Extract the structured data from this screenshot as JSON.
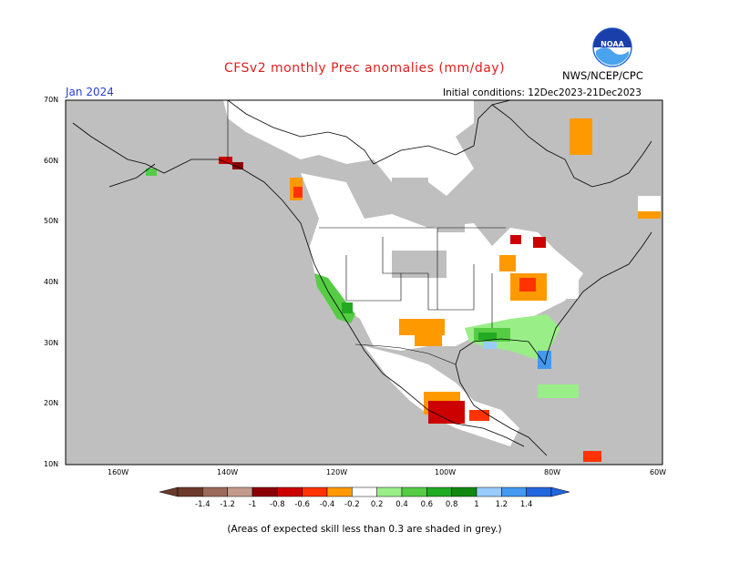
{
  "title": "CFSv2 monthly Prec anomalies (mm/day)",
  "month": "Jan 2024",
  "initial_conditions": "Initial conditions: 12Dec2023-21Dec2023",
  "agency": "NWS/NCEP/CPC",
  "logo_text": "NOAA",
  "footnote": "(Areas of expected skill less than 0.3 are shaded in grey.)",
  "lat_labels": [
    "70N",
    "60N",
    "50N",
    "40N",
    "30N",
    "20N",
    "10N"
  ],
  "lon_labels": [
    "160W",
    "140W",
    "120W",
    "100W",
    "80W",
    "60W"
  ],
  "colorbar": {
    "labels": [
      "-1.4",
      "-1.2",
      "-1",
      "-0.8",
      "-0.6",
      "-0.4",
      "-0.2",
      "0.2",
      "0.4",
      "0.6",
      "0.8",
      "1",
      "1.2",
      "1.4"
    ],
    "colors": [
      "#6b3a2a",
      "#9c6a5a",
      "#c39a8c",
      "#8b0000",
      "#cc0000",
      "#ff3300",
      "#ff9900",
      "#ffffff",
      "#99ee88",
      "#55cc44",
      "#22aa22",
      "#118811",
      "#99ccff",
      "#4499ee",
      "#2266dd"
    ]
  },
  "colors": {
    "grey_mask": "#bfbfbf",
    "title_red": "#e01e1e",
    "month_blue": "#2c3fd6"
  }
}
